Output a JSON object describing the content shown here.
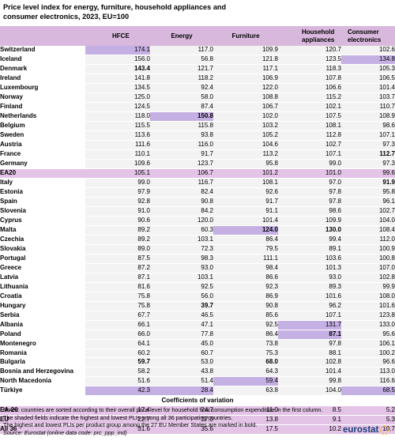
{
  "title": "Price level index for energy, furniture, household appliances and consumer electronics, 2023, EU=100",
  "columns": [
    "HFCE",
    "Energy",
    "Furniture",
    "Household appliances",
    "Consumer electronics"
  ],
  "rows": [
    {
      "country": "Switzerland",
      "values": [
        "174.1",
        "117.0",
        "109.9",
        "120.7",
        "102.6"
      ],
      "hl": [
        0
      ],
      "bold": []
    },
    {
      "country": "Iceland",
      "values": [
        "156.0",
        "56.8",
        "121.8",
        "123.5",
        "134.8"
      ],
      "hl": [
        4
      ],
      "bold": []
    },
    {
      "country": "Denmark",
      "values": [
        "143.4",
        "121.7",
        "117.1",
        "118.3",
        "105.3"
      ],
      "hl": [],
      "bold": [
        0
      ]
    },
    {
      "country": "Ireland",
      "values": [
        "141.8",
        "118.2",
        "106.9",
        "107.8",
        "106.5"
      ],
      "hl": [],
      "bold": []
    },
    {
      "country": "Luxembourg",
      "values": [
        "134.5",
        "92.4",
        "122.0",
        "106.6",
        "101.4"
      ],
      "hl": [],
      "bold": []
    },
    {
      "country": "Norway",
      "values": [
        "125.0",
        "58.0",
        "108.8",
        "115.2",
        "103.7"
      ],
      "hl": [],
      "bold": []
    },
    {
      "country": "Finland",
      "values": [
        "124.5",
        "87.4",
        "106.7",
        "102.1",
        "110.7"
      ],
      "hl": [],
      "bold": []
    },
    {
      "country": "Netherlands",
      "values": [
        "118.0",
        "150.8",
        "102.0",
        "107.5",
        "108.9"
      ],
      "hl": [
        1
      ],
      "bold": [
        1
      ]
    },
    {
      "country": "Belgium",
      "values": [
        "115.5",
        "115.8",
        "103.2",
        "108.1",
        "98.6"
      ],
      "hl": [],
      "bold": []
    },
    {
      "country": "Sweden",
      "values": [
        "113.6",
        "93.8",
        "105.2",
        "112.8",
        "107.1"
      ],
      "hl": [],
      "bold": []
    },
    {
      "country": "Austria",
      "values": [
        "111.6",
        "116.0",
        "104.6",
        "102.7",
        "97.3"
      ],
      "hl": [],
      "bold": []
    },
    {
      "country": "France",
      "values": [
        "110.1",
        "91.7",
        "113.2",
        "107.1",
        "112.7"
      ],
      "hl": [],
      "bold": [
        4
      ]
    },
    {
      "country": "Germany",
      "values": [
        "109.6",
        "123.7",
        "95.8",
        "99.0",
        "97.3"
      ],
      "hl": [],
      "bold": []
    },
    {
      "country": "EA20",
      "values": [
        "105.1",
        "106.7",
        "101.2",
        "101.0",
        "99.6"
      ],
      "hl": [],
      "bold": [],
      "ea": true
    },
    {
      "country": "Italy",
      "values": [
        "99.0",
        "116.7",
        "108.1",
        "97.0",
        "91.9"
      ],
      "hl": [],
      "bold": [
        4
      ]
    },
    {
      "country": "Estonia",
      "values": [
        "97.9",
        "82.4",
        "92.6",
        "97.8",
        "95.8"
      ],
      "hl": [],
      "bold": []
    },
    {
      "country": "Spain",
      "values": [
        "92.8",
        "90.8",
        "91.7",
        "97.8",
        "96.1"
      ],
      "hl": [],
      "bold": []
    },
    {
      "country": "Slovenia",
      "values": [
        "91.0",
        "84.2",
        "91.1",
        "98.6",
        "102.7"
      ],
      "hl": [],
      "bold": []
    },
    {
      "country": "Cyprus",
      "values": [
        "90.6",
        "120.0",
        "101.4",
        "109.9",
        "104.0"
      ],
      "hl": [],
      "bold": []
    },
    {
      "country": "Malta",
      "values": [
        "89.2",
        "60.3",
        "124.0",
        "130.0",
        "108.4"
      ],
      "hl": [
        2
      ],
      "bold": [
        2,
        3
      ]
    },
    {
      "country": "Czechia",
      "values": [
        "89.2",
        "103.1",
        "86.4",
        "99.4",
        "112.0"
      ],
      "hl": [],
      "bold": []
    },
    {
      "country": "Slovakia",
      "values": [
        "89.0",
        "72.3",
        "79.5",
        "89.1",
        "100.9"
      ],
      "hl": [],
      "bold": []
    },
    {
      "country": "Portugal",
      "values": [
        "87.5",
        "98.3",
        "111.1",
        "103.6",
        "100.8"
      ],
      "hl": [],
      "bold": []
    },
    {
      "country": "Greece",
      "values": [
        "87.2",
        "93.0",
        "98.4",
        "101.3",
        "107.0"
      ],
      "hl": [],
      "bold": []
    },
    {
      "country": "Latvia",
      "values": [
        "87.1",
        "103.1",
        "86.6",
        "93.0",
        "102.8"
      ],
      "hl": [],
      "bold": []
    },
    {
      "country": "Lithuania",
      "values": [
        "81.6",
        "92.5",
        "92.3",
        "89.3",
        "99.9"
      ],
      "hl": [],
      "bold": []
    },
    {
      "country": "Croatia",
      "values": [
        "75.8",
        "56.0",
        "86.9",
        "101.6",
        "108.0"
      ],
      "hl": [],
      "bold": []
    },
    {
      "country": "Hungary",
      "values": [
        "75.8",
        "39.7",
        "90.8",
        "96.2",
        "101.6"
      ],
      "hl": [],
      "bold": [
        1
      ]
    },
    {
      "country": "Serbia",
      "values": [
        "67.7",
        "46.5",
        "85.6",
        "107.1",
        "123.8"
      ],
      "hl": [],
      "bold": []
    },
    {
      "country": "Albania",
      "values": [
        "66.1",
        "47.1",
        "92.5",
        "131.7",
        "133.0"
      ],
      "hl": [
        3
      ],
      "bold": []
    },
    {
      "country": "Poland",
      "values": [
        "66.0",
        "77.8",
        "86.4",
        "87.1",
        "95.6"
      ],
      "hl": [
        3
      ],
      "bold": [
        3
      ]
    },
    {
      "country": "Montenegro",
      "values": [
        "64.1",
        "45.0",
        "73.8",
        "97.8",
        "106.1"
      ],
      "hl": [],
      "bold": []
    },
    {
      "country": "Romania",
      "values": [
        "60.2",
        "60.7",
        "75.3",
        "88.1",
        "100.2"
      ],
      "hl": [],
      "bold": []
    },
    {
      "country": "Bulgaria",
      "values": [
        "59.7",
        "53.0",
        "68.0",
        "102.8",
        "96.6"
      ],
      "hl": [],
      "bold": [
        0,
        2
      ]
    },
    {
      "country": "Bosnia and Herzegovina",
      "values": [
        "58.2",
        "43.8",
        "64.3",
        "101.4",
        "113.0"
      ],
      "hl": [],
      "bold": []
    },
    {
      "country": "North Macedonia",
      "values": [
        "51.6",
        "51.4",
        "59.4",
        "99.8",
        "116.6"
      ],
      "hl": [
        2
      ],
      "bold": []
    },
    {
      "country": "Türkiye",
      "values": [
        "42.3",
        "28.4",
        "63.8",
        "104.0",
        "68.5"
      ],
      "hl": [
        0,
        1,
        4
      ],
      "bold": []
    }
  ],
  "cov_title": "Coefficients of variation",
  "cov_rows": [
    {
      "country": "EA-20",
      "values": [
        "17.4",
        "24.7",
        "11.0",
        "8.5",
        "5.2"
      ]
    },
    {
      "country": "EU",
      "values": [
        "22.7",
        "27.0",
        "13.8",
        "9.1",
        "5.3"
      ]
    },
    {
      "country": "All 36",
      "values": [
        "31.6",
        "35.6",
        "17.5",
        "10.2",
        "10.7"
      ]
    }
  ],
  "notes": [
    "Notes: countries are sorted according to their overall price level for household final consumption expenditure in the first column.",
    "The shaded fields indicate the highest and lowest PLIs among all 36 participating countries.",
    "The highest and lowest PLIs per product group among the 27 EU Member States are marked in bold."
  ],
  "source": "Source: Eurostat (online data code: prc_ppp_ind)",
  "logo": "eurostat",
  "colors": {
    "header": "#d9b8dd",
    "highlight": "#c5b0e4",
    "ea_row": "#e3c3e6",
    "row_bg": "#f3f3f3",
    "logo": "#1e3f7a",
    "logo_star": "#f2b800"
  }
}
